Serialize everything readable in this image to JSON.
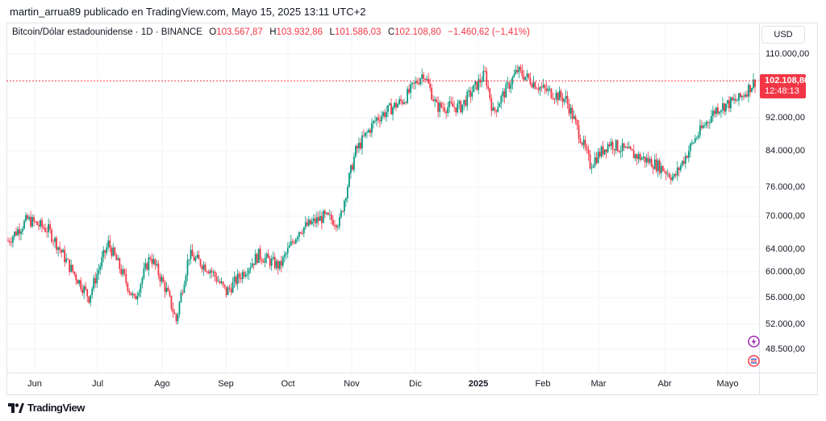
{
  "header": {
    "text": "martin_arrua89 publicado en TradingView.com, Mayo 15, 2025 13:11 UTC+2"
  },
  "legend": {
    "symbol": "Bitcoin/Dólar estadounidense · 1D · BINANCE",
    "o_label": "O",
    "o_value": "103.567,87",
    "h_label": "H",
    "h_value": "103.932,86",
    "l_label": "L",
    "l_value": "101.586,03",
    "c_label": "C",
    "c_value": "102.108,80",
    "change": "−1.460,62 (−1,41%)"
  },
  "currency_button": "USD",
  "last_price": {
    "price": "102.108,80",
    "countdown": "12:48:13"
  },
  "y_ticks": [
    "110.000,00",
    "92.000,00",
    "84.000,00",
    "76.000,00",
    "70.000,00",
    "64.000,00",
    "60.000,00",
    "56.000,00",
    "52.000,00",
    "48.500,00"
  ],
  "x_ticks": [
    "Jun",
    "Jul",
    "Ago",
    "Sep",
    "Oct",
    "Nov",
    "Dic",
    "2025",
    "Feb",
    "Mar",
    "Abr",
    "Mayo"
  ],
  "footer": {
    "brand": "TradingView"
  },
  "colors": {
    "up": "#089981",
    "down": "#f23645",
    "grid": "#f0f3fa"
  },
  "chart_data": {
    "type": "candlestick",
    "ylim": [
      46000,
      112000
    ],
    "y_scale": "log",
    "close_series": [
      {
        "x": "Jun",
        "y": 67500
      },
      {
        "x": "Jul",
        "y": 62700
      },
      {
        "x": "Ago",
        "y": 64600
      },
      {
        "x": "Sep",
        "y": 58900
      },
      {
        "x": "Oct",
        "y": 63300
      },
      {
        "x": "Nov",
        "y": 70200
      },
      {
        "x": "Dic",
        "y": 96400
      },
      {
        "x": "2025",
        "y": 94400
      },
      {
        "x": "Feb",
        "y": 101000
      },
      {
        "x": "Mar",
        "y": 84300
      },
      {
        "x": "Abr",
        "y": 82500
      },
      {
        "x": "Mayo",
        "y": 94200
      }
    ],
    "last_close": 102108.8
  }
}
